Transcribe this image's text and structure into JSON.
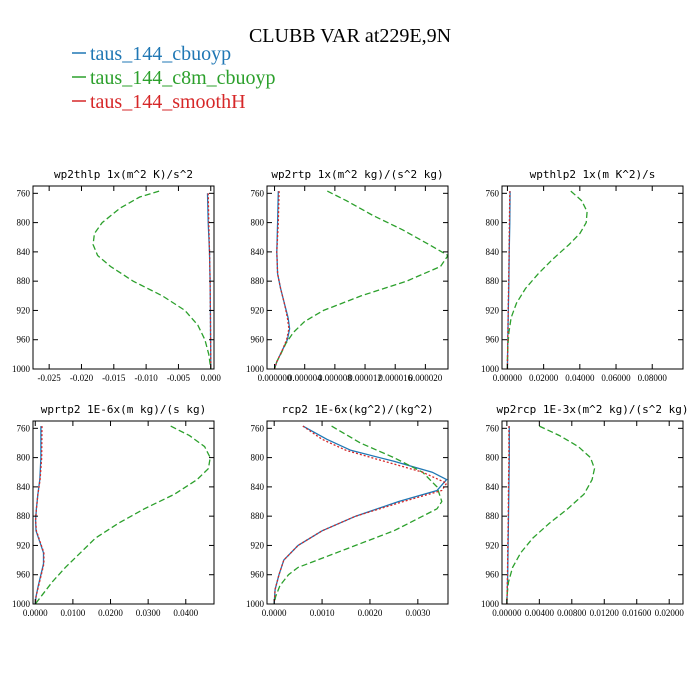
{
  "figure": {
    "title": "CLUBB VAR at229E,9N",
    "legend": [
      {
        "label": "taus_144_cbuoyp",
        "color": "#1f77b4"
      },
      {
        "label": "taus_144_c8m_cbuoyp",
        "color": "#2ca02c"
      },
      {
        "label": "taus_144_smoothH",
        "color": "#d62728"
      }
    ]
  },
  "chart_data": [
    {
      "type": "line",
      "title": "wp2thlp  1x(m^2 K)/s^2",
      "xlim": [
        -0.0275,
        0.0005
      ],
      "xticks": [
        -0.025,
        -0.02,
        -0.015,
        -0.01,
        -0.005,
        0.0
      ],
      "xtick_labels": [
        "-0.025",
        "-0.020",
        "-0.015",
        "-0.010",
        "-0.005",
        "0.000"
      ],
      "ylim": [
        1000,
        750
      ],
      "yticks": [
        760,
        800,
        840,
        880,
        920,
        960,
        1000
      ],
      "series": [
        {
          "name": "taus_144_cbuoyp",
          "y": [
            760,
            800,
            840,
            880,
            920,
            960,
            1000
          ],
          "x": [
            -0.0005,
            -0.0004,
            -0.0002,
            -0.0001,
            -5e-05,
            -2e-05,
            0.0
          ]
        },
        {
          "name": "taus_144_c8m_cbuoyp",
          "y": [
            757,
            765,
            780,
            800,
            815,
            830,
            845,
            860,
            880,
            900,
            920,
            940,
            960,
            980,
            1000
          ],
          "x": [
            -0.008,
            -0.011,
            -0.014,
            -0.0168,
            -0.018,
            -0.0182,
            -0.0175,
            -0.0155,
            -0.012,
            -0.0075,
            -0.004,
            -0.002,
            -0.0009,
            -0.0003,
            0.0
          ]
        },
        {
          "name": "taus_144_smoothH",
          "y": [
            760,
            800,
            840,
            880,
            920,
            960,
            1000
          ],
          "x": [
            -0.0004,
            -0.0003,
            -0.0002,
            -0.0001,
            -5e-05,
            -2e-05,
            0.0
          ]
        }
      ]
    },
    {
      "type": "line",
      "title": "wp2rtp  1x(m^2 kg)/(s^2 kg)",
      "xlim": [
        -1e-06,
        2.3e-05
      ],
      "xticks": [
        0.0,
        4e-06,
        8e-06,
        1.2e-05,
        1.6e-05,
        2e-05
      ],
      "xtick_labels": [
        "0.000000",
        "0.000004",
        "0.000008",
        "0.000012",
        "0.000016",
        "0.000020"
      ],
      "ylim": [
        1000,
        750
      ],
      "yticks": [
        760,
        800,
        840,
        880,
        920,
        960,
        1000
      ],
      "series": [
        {
          "name": "taus_144_cbuoyp",
          "y": [
            757,
            800,
            840,
            870,
            890,
            910,
            930,
            945,
            960,
            975,
            990,
            1000
          ],
          "x": [
            5e-07,
            4e-07,
            3e-07,
            4e-07,
            8e-07,
            1.3e-06,
            1.8e-06,
            2e-06,
            1.7e-06,
            1e-06,
            3e-07,
            0.0
          ]
        },
        {
          "name": "taus_144_c8m_cbuoyp",
          "y": [
            757,
            770,
            790,
            810,
            830,
            845,
            860,
            880,
            900,
            920,
            935,
            950,
            965,
            980,
            990,
            1000
          ],
          "x": [
            7e-06,
            9.5e-06,
            1.3e-05,
            1.7e-05,
            2.05e-05,
            2.3e-05,
            2.2e-05,
            1.75e-05,
            1.15e-05,
            6.5e-06,
            4e-06,
            2.5e-06,
            1.5e-06,
            8e-07,
            3e-07,
            0.0
          ]
        },
        {
          "name": "taus_144_smoothH",
          "y": [
            757,
            800,
            840,
            870,
            890,
            910,
            930,
            945,
            960,
            975,
            990,
            1000
          ],
          "x": [
            6e-07,
            5e-07,
            3e-07,
            4e-07,
            8e-07,
            1.3e-06,
            1.7e-06,
            1.9e-06,
            1.6e-06,
            1e-06,
            3e-07,
            0.0
          ]
        }
      ]
    },
    {
      "type": "line",
      "title": "wpthlp2  1x(m K^2)/s",
      "xlim": [
        -0.003,
        0.097
      ],
      "xticks": [
        0.0,
        0.02,
        0.04,
        0.06,
        0.08
      ],
      "xtick_labels": [
        "0.00000",
        "0.02000",
        "0.04000",
        "0.06000",
        "0.08000"
      ],
      "ylim": [
        1000,
        750
      ],
      "yticks": [
        760,
        800,
        840,
        880,
        920,
        960,
        1000
      ],
      "series": [
        {
          "name": "taus_144_cbuoyp",
          "y": [
            757,
            800,
            840,
            880,
            920,
            960,
            1000
          ],
          "x": [
            0.0015,
            0.0013,
            0.001,
            0.0008,
            0.0005,
            0.0002,
            0.0
          ]
        },
        {
          "name": "taus_144_c8m_cbuoyp",
          "y": [
            757,
            770,
            785,
            800,
            815,
            830,
            850,
            870,
            890,
            910,
            930,
            950,
            970,
            990,
            1000
          ],
          "x": [
            0.035,
            0.041,
            0.044,
            0.0435,
            0.04,
            0.034,
            0.025,
            0.017,
            0.01,
            0.005,
            0.002,
            0.0008,
            0.0002,
            0.0,
            0.0
          ]
        },
        {
          "name": "taus_144_smoothH",
          "y": [
            757,
            800,
            840,
            880,
            920,
            960,
            1000
          ],
          "x": [
            0.0013,
            0.0011,
            0.0009,
            0.0007,
            0.0004,
            0.0002,
            0.0
          ]
        }
      ]
    },
    {
      "type": "line",
      "title": "wprtp2  1E-6x(m kg)/(s kg)",
      "xlim": [
        -0.0006,
        0.0475
      ],
      "xticks": [
        0.0,
        0.01,
        0.02,
        0.03,
        0.04
      ],
      "xtick_labels": [
        "0.0000",
        "0.0100",
        "0.0200",
        "0.0300",
        "0.0400"
      ],
      "ylim": [
        1000,
        750
      ],
      "yticks": [
        760,
        800,
        840,
        880,
        920,
        960,
        1000
      ],
      "series": [
        {
          "name": "taus_144_cbuoyp",
          "y": [
            757,
            800,
            830,
            850,
            870,
            885,
            900,
            915,
            930,
            945,
            960,
            975,
            990,
            1000
          ],
          "x": [
            0.0015,
            0.0015,
            0.0012,
            0.0007,
            0.0003,
            0.0001,
            0.0002,
            0.0012,
            0.0022,
            0.0022,
            0.0015,
            0.0008,
            0.0002,
            0.0
          ]
        },
        {
          "name": "taus_144_c8m_cbuoyp",
          "y": [
            757,
            770,
            785,
            800,
            815,
            830,
            850,
            870,
            890,
            910,
            930,
            950,
            970,
            990,
            1000
          ],
          "x": [
            0.036,
            0.041,
            0.045,
            0.0465,
            0.046,
            0.043,
            0.037,
            0.029,
            0.022,
            0.016,
            0.012,
            0.008,
            0.0045,
            0.0015,
            0.0
          ]
        },
        {
          "name": "taus_144_smoothH",
          "y": [
            757,
            800,
            830,
            850,
            870,
            885,
            900,
            915,
            930,
            945,
            960,
            975,
            990,
            1000
          ],
          "x": [
            0.0018,
            0.0017,
            0.0013,
            0.0007,
            0.0003,
            0.0001,
            0.0003,
            0.0013,
            0.0023,
            0.0023,
            0.0016,
            0.0009,
            0.0002,
            0.0
          ]
        }
      ]
    },
    {
      "type": "line",
      "title": "rcp2  1E-6x(kg^2)/(kg^2)",
      "xlim": [
        -0.00015,
        0.00363
      ],
      "xticks": [
        0.0,
        0.001,
        0.002,
        0.003
      ],
      "xtick_labels": [
        "0.0000",
        "0.0010",
        "0.0020",
        "0.0030"
      ],
      "ylim": [
        1000,
        750
      ],
      "yticks": [
        760,
        800,
        840,
        880,
        920,
        960,
        1000
      ],
      "series": [
        {
          "name": "taus_144_cbuoyp",
          "y": [
            757,
            775,
            790,
            805,
            820,
            830,
            845,
            860,
            880,
            900,
            920,
            940,
            960,
            980,
            1000
          ],
          "x": [
            0.0006,
            0.0011,
            0.0016,
            0.0025,
            0.0033,
            0.0036,
            0.0034,
            0.0026,
            0.0017,
            0.001,
            0.0005,
            0.0002,
            0.0001,
            2e-05,
            0.0
          ]
        },
        {
          "name": "taus_144_c8m_cbuoyp",
          "y": [
            757,
            780,
            800,
            820,
            840,
            860,
            870,
            880,
            900,
            920,
            940,
            950,
            960,
            975,
            990,
            1000
          ],
          "x": [
            0.0012,
            0.0018,
            0.0025,
            0.0031,
            0.0034,
            0.0035,
            0.0034,
            0.0031,
            0.0025,
            0.0017,
            0.0009,
            0.0005,
            0.0003,
            0.00012,
            3e-05,
            0.0
          ]
        },
        {
          "name": "taus_144_smoothH",
          "y": [
            757,
            775,
            790,
            805,
            820,
            835,
            845,
            860,
            880,
            900,
            920,
            940,
            960,
            980,
            1000
          ],
          "x": [
            0.0006,
            0.001,
            0.0015,
            0.0023,
            0.0031,
            0.0036,
            0.0035,
            0.0027,
            0.0017,
            0.001,
            0.0005,
            0.0002,
            0.0001,
            2e-05,
            0.0
          ]
        }
      ]
    },
    {
      "type": "line",
      "title": "wp2rcp  1E-3x(m^2 kg)/(s^2 kg)",
      "xlim": [
        -0.0006,
        0.0217
      ],
      "xticks": [
        0.0,
        0.004,
        0.008,
        0.012,
        0.016,
        0.02
      ],
      "xtick_labels": [
        "0.00000",
        "0.00400",
        "0.00800",
        "0.01200",
        "0.01600",
        "0.02000"
      ],
      "ylim": [
        1000,
        750
      ],
      "yticks": [
        760,
        800,
        840,
        880,
        920,
        960,
        1000
      ],
      "series": [
        {
          "name": "taus_144_cbuoyp",
          "y": [
            757,
            800,
            840,
            880,
            920,
            960,
            1000
          ],
          "x": [
            0.0003,
            0.0003,
            0.00025,
            0.0002,
            0.00015,
            0.0001,
            0.0
          ]
        },
        {
          "name": "taus_144_c8m_cbuoyp",
          "y": [
            757,
            770,
            785,
            800,
            815,
            830,
            850,
            870,
            890,
            910,
            930,
            950,
            970,
            990,
            1000
          ],
          "x": [
            0.004,
            0.0065,
            0.0088,
            0.0103,
            0.0108,
            0.0105,
            0.0095,
            0.0075,
            0.0052,
            0.0032,
            0.0017,
            0.0007,
            0.0002,
            0.0,
            0.0
          ]
        },
        {
          "name": "taus_144_smoothH",
          "y": [
            757,
            800,
            840,
            880,
            920,
            960,
            1000
          ],
          "x": [
            0.00025,
            0.00025,
            0.0002,
            0.00018,
            0.00012,
            8e-05,
            0.0
          ]
        }
      ]
    }
  ]
}
